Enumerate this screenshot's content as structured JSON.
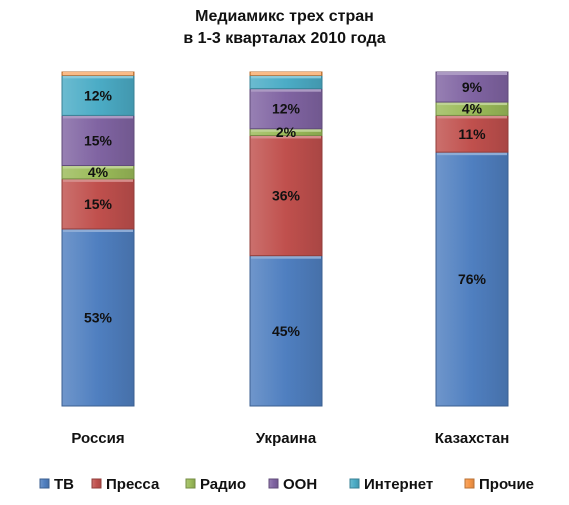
{
  "chart_data": {
    "type": "bar",
    "stacked": true,
    "title_lines": [
      "Медиамикс трех стран",
      "в 1-3 кварталах 2010 года"
    ],
    "categories": [
      "Россия",
      "Украина",
      "Казахстан"
    ],
    "series": [
      {
        "name": "ТВ",
        "color": "#4f7fc0",
        "values": [
          53,
          45,
          76
        ],
        "labels": [
          "53%",
          "45%",
          "76%"
        ]
      },
      {
        "name": "Пресса",
        "color": "#c0504d",
        "values": [
          15,
          36,
          11
        ],
        "labels": [
          "15%",
          "36%",
          "11%"
        ]
      },
      {
        "name": "Радио",
        "color": "#9bbb59",
        "values": [
          4,
          2,
          4
        ],
        "labels": [
          "4%",
          "2%",
          "4%"
        ]
      },
      {
        "name": "ООН",
        "color": "#8064a2",
        "values": [
          15,
          12,
          9
        ],
        "labels": [
          "15%",
          "12%",
          "9%"
        ]
      },
      {
        "name": "Интернет",
        "color": "#4bacc6",
        "values": [
          12,
          4,
          0
        ],
        "labels": [
          "12%",
          "",
          ""
        ]
      },
      {
        "name": "Прочие",
        "color": "#f79646",
        "values": [
          1,
          1,
          0
        ],
        "labels": [
          "",
          "",
          ""
        ]
      }
    ],
    "ylim": [
      0,
      100
    ],
    "legend_position": "bottom",
    "grid": false
  }
}
